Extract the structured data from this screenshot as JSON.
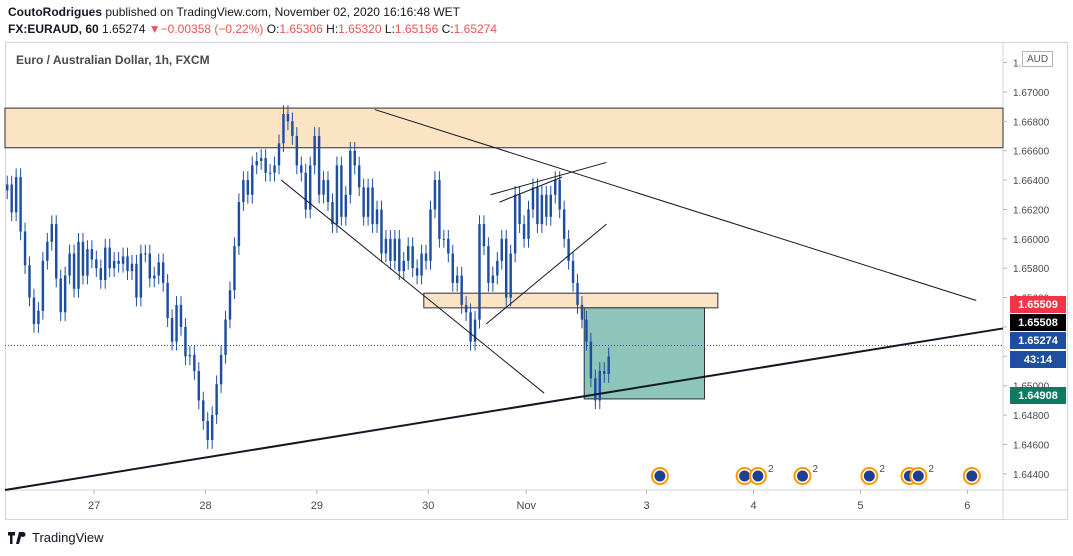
{
  "header": {
    "author": "CoutoRodrigues",
    "published_text": "published on TradingView.com, November 02, 2020 16:16:48 WET",
    "symbol": "FX:EURAUD, 60",
    "last": "1.65274",
    "change_arrow": "▼",
    "change": "−0.00358 (−0.22%)",
    "o_label": "O:",
    "o_value": "1.65306",
    "h_label": "H:",
    "h_value": "1.65320",
    "l_label": "L:",
    "l_value": "1.65156",
    "c_label": "C:",
    "c_value": "1.65274"
  },
  "legend": "Euro / Australian Dollar, 1h, FXCM",
  "currency": "AUD",
  "footer": {
    "brand": "TradingView"
  },
  "price_tags": {
    "red": "1.65509",
    "black": "1.65508",
    "blue": "1.65274",
    "countdown": "43:14",
    "green": "1.64908"
  },
  "colors": {
    "candle": "#1e4ea0",
    "resistance_zone": "#fbe4c4",
    "target_box": "#8ec5bb",
    "tag_red": "#f23645",
    "tag_black": "#000000",
    "tag_blue": "#1e4ea0",
    "tag_green": "#0f7a62"
  },
  "chart_data": {
    "type": "candlestick",
    "symbol": "EURAUD",
    "timeframe": "1h",
    "y_ticks": [
      "1.64400",
      "1.64600",
      "1.64800",
      "1.65000",
      "1.65200",
      "1.65400",
      "1.65600",
      "1.65800",
      "1.66000",
      "1.66200",
      "1.66400",
      "1.66600",
      "1.66800",
      "1.67000",
      "1.67200"
    ],
    "y_tick_values": [
      1.644,
      1.646,
      1.648,
      1.65,
      1.652,
      1.654,
      1.656,
      1.658,
      1.66,
      1.662,
      1.664,
      1.666,
      1.668,
      1.67,
      1.672
    ],
    "ylim": [
      1.6429,
      1.6734
    ],
    "x_ticks": [
      "27",
      "28",
      "29",
      "30",
      "Nov",
      "3",
      "4",
      "5",
      "6"
    ],
    "x_tick_index": [
      20,
      45,
      70,
      95,
      117,
      144,
      168,
      192,
      216
    ],
    "n_index": 224,
    "close_series": [
      1.6637,
      1.6618,
      1.6642,
      1.6605,
      1.6582,
      1.656,
      1.6542,
      1.6551,
      1.6585,
      1.6598,
      1.661,
      1.6573,
      1.655,
      1.6575,
      1.659,
      1.6566,
      1.6598,
      1.6575,
      1.6593,
      1.6586,
      1.658,
      1.6572,
      1.6594,
      1.658,
      1.6585,
      1.6583,
      1.6588,
      1.6578,
      1.6583,
      1.656,
      1.659,
      1.659,
      1.6573,
      1.6575,
      1.6584,
      1.657,
      1.6546,
      1.653,
      1.6555,
      1.654,
      1.652,
      1.6521,
      1.651,
      1.649,
      1.6476,
      1.6463,
      1.648,
      1.6501,
      1.6521,
      1.6545,
      1.6565,
      1.6595,
      1.6625,
      1.664,
      1.663,
      1.665,
      1.6653,
      1.6655,
      1.6645,
      1.6645,
      1.665,
      1.6665,
      1.6685,
      1.668,
      1.667,
      1.665,
      1.6645,
      1.662,
      1.665,
      1.667,
      1.663,
      1.664,
      1.6625,
      1.661,
      1.665,
      1.6615,
      1.663,
      1.666,
      1.665,
      1.6635,
      1.6615,
      1.6635,
      1.661,
      1.662,
      1.659,
      1.66,
      1.6585,
      1.66,
      1.6578,
      1.6585,
      1.6595,
      1.658,
      1.6575,
      1.659,
      1.6585,
      1.662,
      1.664,
      1.66,
      1.66,
      1.659,
      1.657,
      1.6575,
      1.6555,
      1.655,
      1.653,
      1.6545,
      1.661,
      1.6595,
      1.657,
      1.6575,
      1.6585,
      1.66,
      1.656,
      1.659,
      1.663,
      1.661,
      1.66,
      1.662,
      1.6635,
      1.661,
      1.663,
      1.6615,
      1.663,
      1.664,
      1.662,
      1.66,
      1.6585,
      1.657,
      1.6555,
      1.6545,
      1.653,
      1.6505,
      1.649,
      1.651,
      1.6508,
      1.652
    ],
    "close_index_start": 0,
    "zones": [
      {
        "name": "resistance",
        "y_range": [
          1.6662,
          1.6689
        ],
        "x_index_range": [
          0,
          224
        ]
      },
      {
        "name": "support",
        "y_range": [
          1.6553,
          1.6563
        ],
        "x_index_range": [
          94,
          160
        ]
      }
    ],
    "target_box": {
      "x_index_range": [
        130,
        157
      ],
      "y_range": [
        1.6491,
        1.6553
      ]
    },
    "trendlines": [
      {
        "name": "upper",
        "points": [
          [
            83,
            1.6688
          ],
          [
            218,
            1.6558
          ]
        ]
      },
      {
        "name": "ascending-support",
        "points": [
          [
            0,
            1.6429
          ],
          [
            224,
            1.6539
          ]
        ]
      },
      {
        "name": "wedge-lower",
        "points": [
          [
            62,
            1.664
          ],
          [
            121,
            1.6495
          ]
        ]
      },
      {
        "name": "wedge-inner",
        "points": [
          [
            108,
            1.6542
          ],
          [
            135,
            1.661
          ]
        ]
      },
      {
        "name": "triangle-top",
        "points": [
          [
            109,
            1.663
          ],
          [
            135,
            1.6652
          ]
        ]
      },
      {
        "name": "triangle-mid",
        "points": [
          [
            111,
            1.6625
          ],
          [
            125,
            1.6642
          ]
        ]
      }
    ],
    "last_price": 1.65274,
    "event_icons": [
      {
        "x_index": 147,
        "count": ""
      },
      {
        "x_index": 166,
        "count": ""
      },
      {
        "x_index": 169,
        "count": "2"
      },
      {
        "x_index": 179,
        "count": "2"
      },
      {
        "x_index": 194,
        "count": "2"
      },
      {
        "x_index": 203,
        "count": ""
      },
      {
        "x_index": 205,
        "count": "2"
      },
      {
        "x_index": 217,
        "count": ""
      }
    ]
  }
}
